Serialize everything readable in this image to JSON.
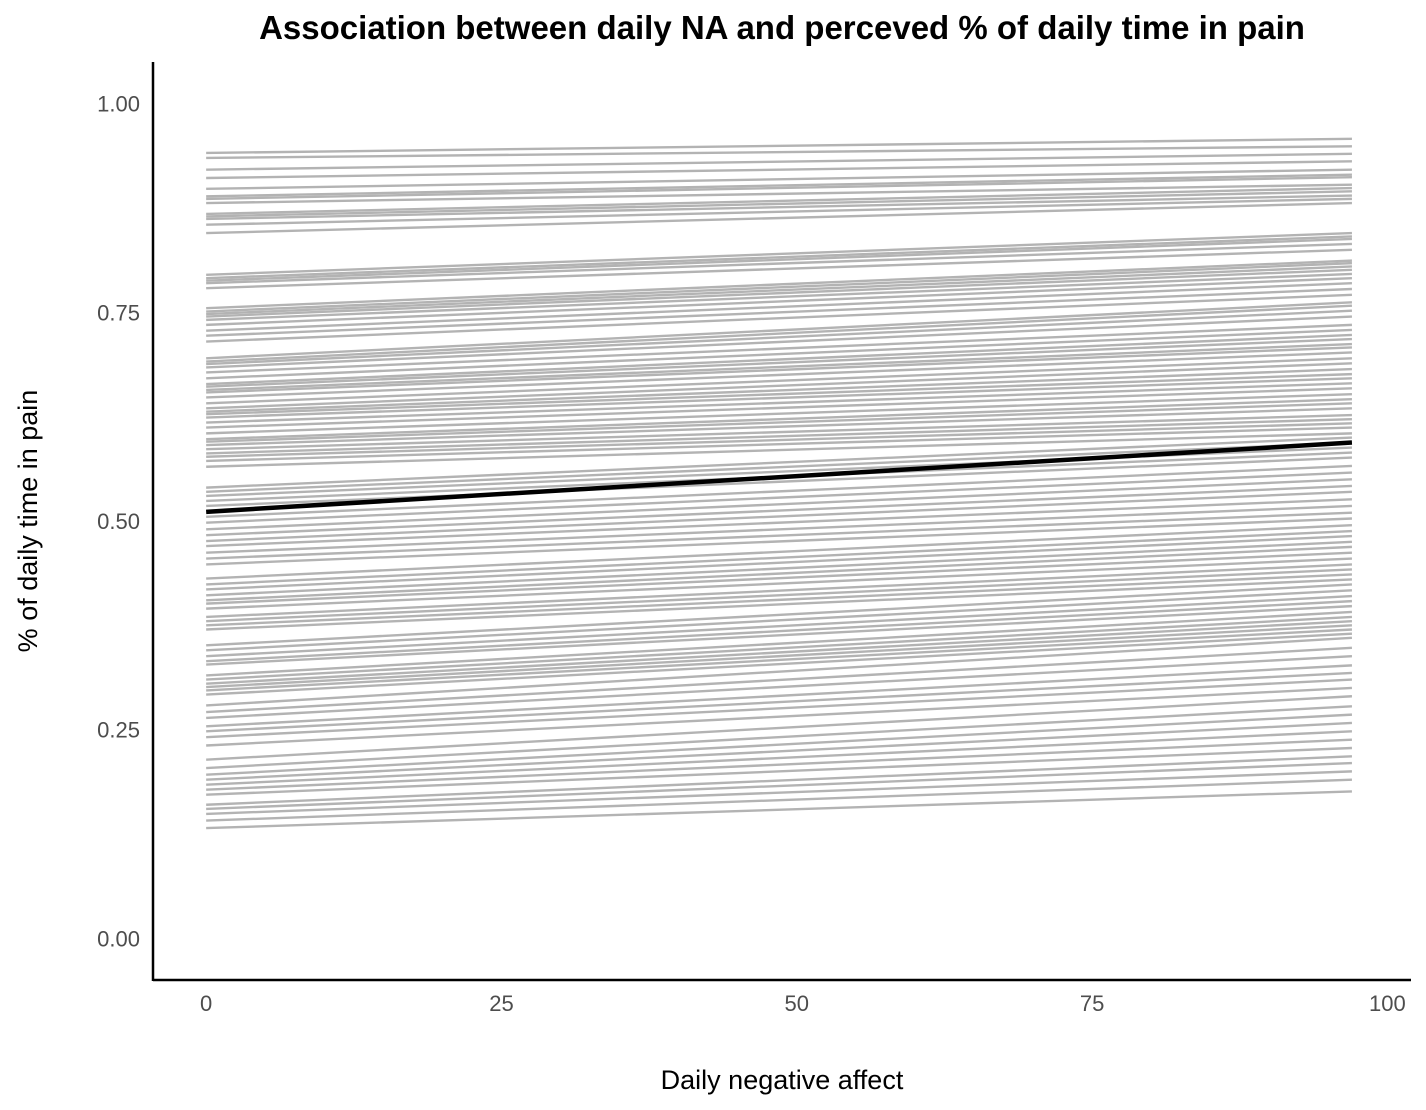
{
  "chart_data": {
    "type": "line",
    "title": "Association between daily NA and perceved % of daily time in pain",
    "xlabel": "Daily negative affect",
    "ylabel": "% of daily time in pain",
    "xlim": [
      -4.5,
      102
    ],
    "ylim": [
      -0.05,
      1.05
    ],
    "x_ticks": [
      0,
      25,
      50,
      75,
      100
    ],
    "x_tick_labels": [
      "0",
      "25",
      "50",
      "75",
      "100"
    ],
    "y_ticks": [
      0,
      0.25,
      0.5,
      0.75,
      1.0
    ],
    "y_tick_labels": [
      "0.00",
      "0.25",
      "0.50",
      "0.75",
      "1.00"
    ],
    "x_range": [
      0,
      97
    ],
    "grid": false,
    "legend": "none",
    "colors": {
      "individual": "#b3b3b3",
      "average": "#000000"
    },
    "average_line": {
      "x": [
        0,
        97
      ],
      "y": [
        0.511,
        0.594
      ]
    },
    "individual_lines": [
      [
        0.941,
        0.958
      ],
      [
        0.935,
        0.949
      ],
      [
        0.921,
        0.94
      ],
      [
        0.911,
        0.931
      ],
      [
        0.898,
        0.921
      ],
      [
        0.889,
        0.915
      ],
      [
        0.886,
        0.912
      ],
      [
        0.881,
        0.903
      ],
      [
        0.868,
        0.899
      ],
      [
        0.865,
        0.895
      ],
      [
        0.862,
        0.89
      ],
      [
        0.855,
        0.886
      ],
      [
        0.845,
        0.881
      ],
      [
        0.795,
        0.845
      ],
      [
        0.791,
        0.841
      ],
      [
        0.788,
        0.838
      ],
      [
        0.785,
        0.832
      ],
      [
        0.779,
        0.825
      ],
      [
        0.755,
        0.812
      ],
      [
        0.751,
        0.809
      ],
      [
        0.748,
        0.805
      ],
      [
        0.745,
        0.801
      ],
      [
        0.741,
        0.796
      ],
      [
        0.735,
        0.791
      ],
      [
        0.728,
        0.785
      ],
      [
        0.722,
        0.778
      ],
      [
        0.715,
        0.771
      ],
      [
        0.695,
        0.762
      ],
      [
        0.691,
        0.758
      ],
      [
        0.688,
        0.752
      ],
      [
        0.684,
        0.745
      ],
      [
        0.678,
        0.735
      ],
      [
        0.671,
        0.729
      ],
      [
        0.664,
        0.723
      ],
      [
        0.661,
        0.718
      ],
      [
        0.657,
        0.712
      ],
      [
        0.654,
        0.708
      ],
      [
        0.648,
        0.702
      ],
      [
        0.641,
        0.695
      ],
      [
        0.635,
        0.689
      ],
      [
        0.631,
        0.682
      ],
      [
        0.628,
        0.676
      ],
      [
        0.624,
        0.671
      ],
      [
        0.618,
        0.665
      ],
      [
        0.612,
        0.659
      ],
      [
        0.605,
        0.652
      ],
      [
        0.598,
        0.646
      ],
      [
        0.595,
        0.641
      ],
      [
        0.591,
        0.635
      ],
      [
        0.586,
        0.627
      ],
      [
        0.581,
        0.622
      ],
      [
        0.577,
        0.617
      ],
      [
        0.572,
        0.612
      ],
      [
        0.565,
        0.605
      ],
      [
        0.54,
        0.6
      ],
      [
        0.535,
        0.594
      ],
      [
        0.53,
        0.588
      ],
      [
        0.524,
        0.582
      ],
      [
        0.518,
        0.576
      ],
      [
        0.505,
        0.566
      ],
      [
        0.498,
        0.558
      ],
      [
        0.49,
        0.55
      ],
      [
        0.483,
        0.542
      ],
      [
        0.476,
        0.535
      ],
      [
        0.47,
        0.526
      ],
      [
        0.462,
        0.518
      ],
      [
        0.455,
        0.51
      ],
      [
        0.448,
        0.503
      ],
      [
        0.431,
        0.495
      ],
      [
        0.424,
        0.488
      ],
      [
        0.418,
        0.482
      ],
      [
        0.411,
        0.475
      ],
      [
        0.405,
        0.469
      ],
      [
        0.401,
        0.462
      ],
      [
        0.395,
        0.455
      ],
      [
        0.385,
        0.448
      ],
      [
        0.38,
        0.442
      ],
      [
        0.375,
        0.436
      ],
      [
        0.37,
        0.43
      ],
      [
        0.351,
        0.424
      ],
      [
        0.345,
        0.417
      ],
      [
        0.338,
        0.41
      ],
      [
        0.332,
        0.404
      ],
      [
        0.328,
        0.398
      ],
      [
        0.315,
        0.391
      ],
      [
        0.31,
        0.385
      ],
      [
        0.305,
        0.38
      ],
      [
        0.301,
        0.375
      ],
      [
        0.297,
        0.37
      ],
      [
        0.292,
        0.365
      ],
      [
        0.279,
        0.36
      ],
      [
        0.271,
        0.348
      ],
      [
        0.264,
        0.338
      ],
      [
        0.254,
        0.327
      ],
      [
        0.248,
        0.318
      ],
      [
        0.241,
        0.31
      ],
      [
        0.231,
        0.3
      ],
      [
        0.214,
        0.29
      ],
      [
        0.204,
        0.278
      ],
      [
        0.196,
        0.268
      ],
      [
        0.19,
        0.258
      ],
      [
        0.184,
        0.248
      ],
      [
        0.178,
        0.238
      ],
      [
        0.172,
        0.228
      ],
      [
        0.16,
        0.218
      ],
      [
        0.155,
        0.21
      ],
      [
        0.149,
        0.2
      ],
      [
        0.141,
        0.19
      ],
      [
        0.132,
        0.176
      ]
    ]
  }
}
